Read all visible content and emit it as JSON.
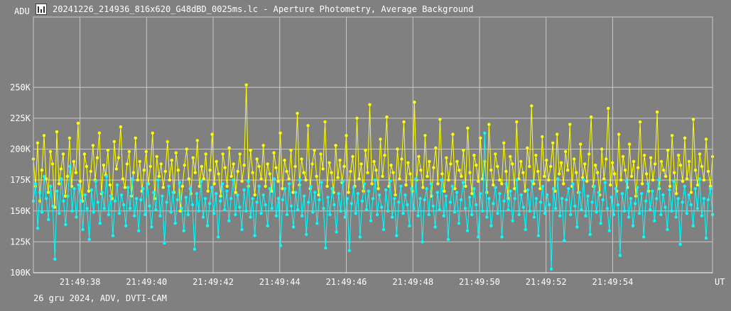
{
  "title": "20241226_214936_816x620_G48dBD_0025ms.lc - Aperture Photometry, Average Background",
  "icon": "light-curve-icon",
  "footer": "26 gru 2024, ADV, DVTI-CAM",
  "colors": {
    "background": "#808080",
    "grid": "#c8c8c8",
    "axis": "#ffffff",
    "series_yellow": "#ffff00",
    "series_cyan": "#00ffff"
  },
  "chart_data": {
    "type": "line",
    "ylabel": "ADU",
    "xlabel": "UT",
    "ylim": [
      100000,
      300000
    ],
    "xlim": [
      "21:49:36.6",
      "21:49:57.0"
    ],
    "yticks": [
      {
        "value": 100000,
        "label": "100K"
      },
      {
        "value": 125000,
        "label": "125K"
      },
      {
        "value": 150000,
        "label": "150K"
      },
      {
        "value": 175000,
        "label": "175K"
      },
      {
        "value": 200000,
        "label": "200K"
      },
      {
        "value": 225000,
        "label": "225K"
      },
      {
        "value": 250000,
        "label": "250K"
      }
    ],
    "xticks": [
      "21:49:38",
      "21:49:40",
      "21:49:42",
      "21:49:44",
      "21:49:46",
      "21:49:48",
      "21:49:50",
      "21:49:52",
      "21:49:54"
    ],
    "grid": true,
    "legend": "none",
    "series": [
      {
        "color": "#ffff00",
        "values": [
          192000,
          170000,
          205000,
          158000,
          183000,
          211000,
          176000,
          165000,
          198000,
          188000,
          153000,
          214000,
          172000,
          184000,
          196000,
          162000,
          178000,
          209000,
          170000,
          190000,
          181000,
          221000,
          174000,
          158000,
          196000,
          186000,
          166000,
          182000,
          203000,
          175000,
          193000,
          213000,
          164000,
          187000,
          179000,
          199000,
          171000,
          160000,
          206000,
          184000,
          193000,
          218000,
          176000,
          169000,
          188000,
          198000,
          162000,
          181000,
          209000,
          175000,
          190000,
          166000,
          183000,
          198000,
          172000,
          186000,
          213000,
          160000,
          194000,
          178000,
          188000,
          169000,
          182000,
          206000,
          175000,
          191000,
          165000,
          197000,
          183000,
          150000,
          170000,
          187000,
          200000,
          176000,
          164000,
          193000,
          181000,
          207000,
          170000,
          186000,
          176000,
          196000,
          166000,
          183000,
          212000,
          172000,
          190000,
          180000,
          162000,
          196000,
          185000,
          170000,
          201000,
          178000,
          188000,
          165000,
          182000,
          196000,
          174000,
          187000,
          252000,
          170000,
          199000,
          181000,
          163000,
          192000,
          186000,
          176000,
          203000,
          170000,
          188000,
          180000,
          166000,
          197000,
          185000,
          174000,
          213000,
          168000,
          191000,
          182000,
          176000,
          199000,
          165000,
          186000,
          229000,
          171000,
          192000,
          181000,
          175000,
          219000,
          168000,
          188000,
          199000,
          178000,
          163000,
          196000,
          184000,
          222000,
          170000,
          189000,
          181000,
          165000,
          203000,
          177000,
          191000,
          173000,
          186000,
          211000,
          165000,
          182000,
          194000,
          170000,
          225000,
          176000,
          188000,
          166000,
          199000,
          181000,
          236000,
          172000,
          190000,
          183000,
          168000,
          208000,
          178000,
          195000,
          226000,
          170000,
          187000,
          181000,
          163000,
          200000,
          176000,
          192000,
          222000,
          171000,
          189000,
          180000,
          166000,
          238000,
          175000,
          194000,
          183000,
          169000,
          211000,
          178000,
          190000,
          162000,
          185000,
          201000,
          172000,
          224000,
          180000,
          166000,
          193000,
          175000,
          188000,
          212000,
          168000,
          190000,
          183000,
          178000,
          199000,
          170000,
          217000,
          181000,
          164000,
          195000,
          187000,
          174000,
          209000,
          176000,
          190000,
          165000,
          220000,
          183000,
          171000,
          196000,
          186000,
          175000,
          172000,
          205000,
          182000,
          160000,
          194000,
          188000,
          168000,
          222000,
          176000,
          190000,
          181000,
          166000,
          201000,
          186000,
          235000,
          172000,
          195000,
          182000,
          168000,
          210000,
          178000,
          191000,
          175000,
          186000,
          205000,
          166000,
          212000,
          180000,
          189000,
          172000,
          198000,
          183000,
          220000,
          170000,
          192000,
          181000,
          165000,
          204000,
          177000,
          188000,
          174000,
          196000,
          226000,
          170000,
          187000,
          181000,
          163000,
          200000,
          176000,
          192000,
          233000,
          171000,
          189000,
          180000,
          166000,
          212000,
          175000,
          194000,
          183000,
          169000,
          204000,
          178000,
          190000,
          162000,
          185000,
          222000,
          172000,
          195000,
          180000,
          166000,
          193000,
          175000,
          188000,
          230000,
          168000,
          190000,
          183000,
          178000,
          199000,
          170000,
          211000,
          181000,
          164000,
          195000,
          187000,
          174000,
          209000,
          176000,
          190000,
          165000,
          224000,
          183000,
          171000,
          196000,
          186000,
          175000,
          208000,
          182000,
          170000,
          194000
        ]
      },
      {
        "color": "#00ffff",
        "values": [
          158000,
          172000,
          136000,
          165000,
          149000,
          178000,
          160000,
          143000,
          170000,
          154000,
          111000,
          166000,
          148000,
          176000,
          158000,
          139000,
          162000,
          186000,
          150000,
          168000,
          145000,
          171000,
          158000,
          135000,
          163000,
          152000,
          127000,
          167000,
          149000,
          174000,
          157000,
          140000,
          165000,
          152000,
          178000,
          147000,
          162000,
          130000,
          158000,
          171000,
          148000,
          163000,
          155000,
          138000,
          169000,
          152000,
          176000,
          146000,
          160000,
          134000,
          159000,
          168000,
          147000,
          172000,
          154000,
          137000,
          165000,
          151000,
          175000,
          146000,
          162000,
          124000,
          157000,
          170000,
          149000,
          165000,
          140000,
          159000,
          173000,
          152000,
          134000,
          161000,
          147000,
          168000,
          155000,
          119000,
          164000,
          150000,
          174000,
          145000,
          160000,
          138000,
          156000,
          169000,
          148000,
          164000,
          129000,
          158000,
          172000,
          151000,
          166000,
          142000,
          160000,
          175000,
          147000,
          163000,
          153000,
          135000,
          167000,
          150000,
          174000,
          145000,
          160000,
          130000,
          157000,
          170000,
          148000,
          163000,
          155000,
          138000,
          168000,
          152000,
          176000,
          146000,
          160000,
          122000,
          159000,
          168000,
          147000,
          172000,
          154000,
          137000,
          165000,
          151000,
          175000,
          146000,
          162000,
          131000,
          157000,
          170000,
          149000,
          165000,
          140000,
          159000,
          173000,
          152000,
          120000,
          161000,
          147000,
          168000,
          155000,
          133000,
          164000,
          150000,
          174000,
          145000,
          160000,
          118000,
          156000,
          169000,
          148000,
          164000,
          129000,
          158000,
          172000,
          151000,
          166000,
          142000,
          160000,
          175000,
          147000,
          163000,
          153000,
          135000,
          167000,
          150000,
          174000,
          145000,
          160000,
          130000,
          157000,
          170000,
          148000,
          163000,
          155000,
          138000,
          168000,
          152000,
          176000,
          146000,
          160000,
          125000,
          159000,
          168000,
          147000,
          172000,
          154000,
          137000,
          165000,
          151000,
          175000,
          146000,
          162000,
          127000,
          157000,
          170000,
          149000,
          165000,
          140000,
          159000,
          173000,
          152000,
          134000,
          161000,
          147000,
          168000,
          155000,
          129000,
          164000,
          150000,
          213000,
          145000,
          160000,
          138000,
          156000,
          169000,
          148000,
          164000,
          129000,
          158000,
          172000,
          151000,
          166000,
          142000,
          160000,
          175000,
          147000,
          163000,
          153000,
          135000,
          167000,
          150000,
          174000,
          145000,
          160000,
          130000,
          157000,
          170000,
          148000,
          163000,
          155000,
          103000,
          168000,
          152000,
          176000,
          146000,
          160000,
          126000,
          159000,
          168000,
          147000,
          172000,
          154000,
          137000,
          165000,
          151000,
          175000,
          146000,
          162000,
          131000,
          157000,
          170000,
          149000,
          165000,
          140000,
          159000,
          173000,
          152000,
          134000,
          161000,
          147000,
          168000,
          155000,
          114000,
          164000,
          150000,
          174000,
          145000,
          160000,
          138000,
          156000,
          169000,
          148000,
          164000,
          129000,
          158000,
          172000,
          151000,
          166000,
          142000,
          160000,
          175000,
          147000,
          163000,
          153000,
          135000,
          167000,
          150000,
          174000,
          145000,
          160000,
          123000,
          157000,
          170000,
          148000,
          163000,
          155000,
          138000,
          168000,
          152000,
          176000,
          146000,
          160000,
          128000,
          159000,
          168000,
          147000
        ]
      }
    ]
  }
}
